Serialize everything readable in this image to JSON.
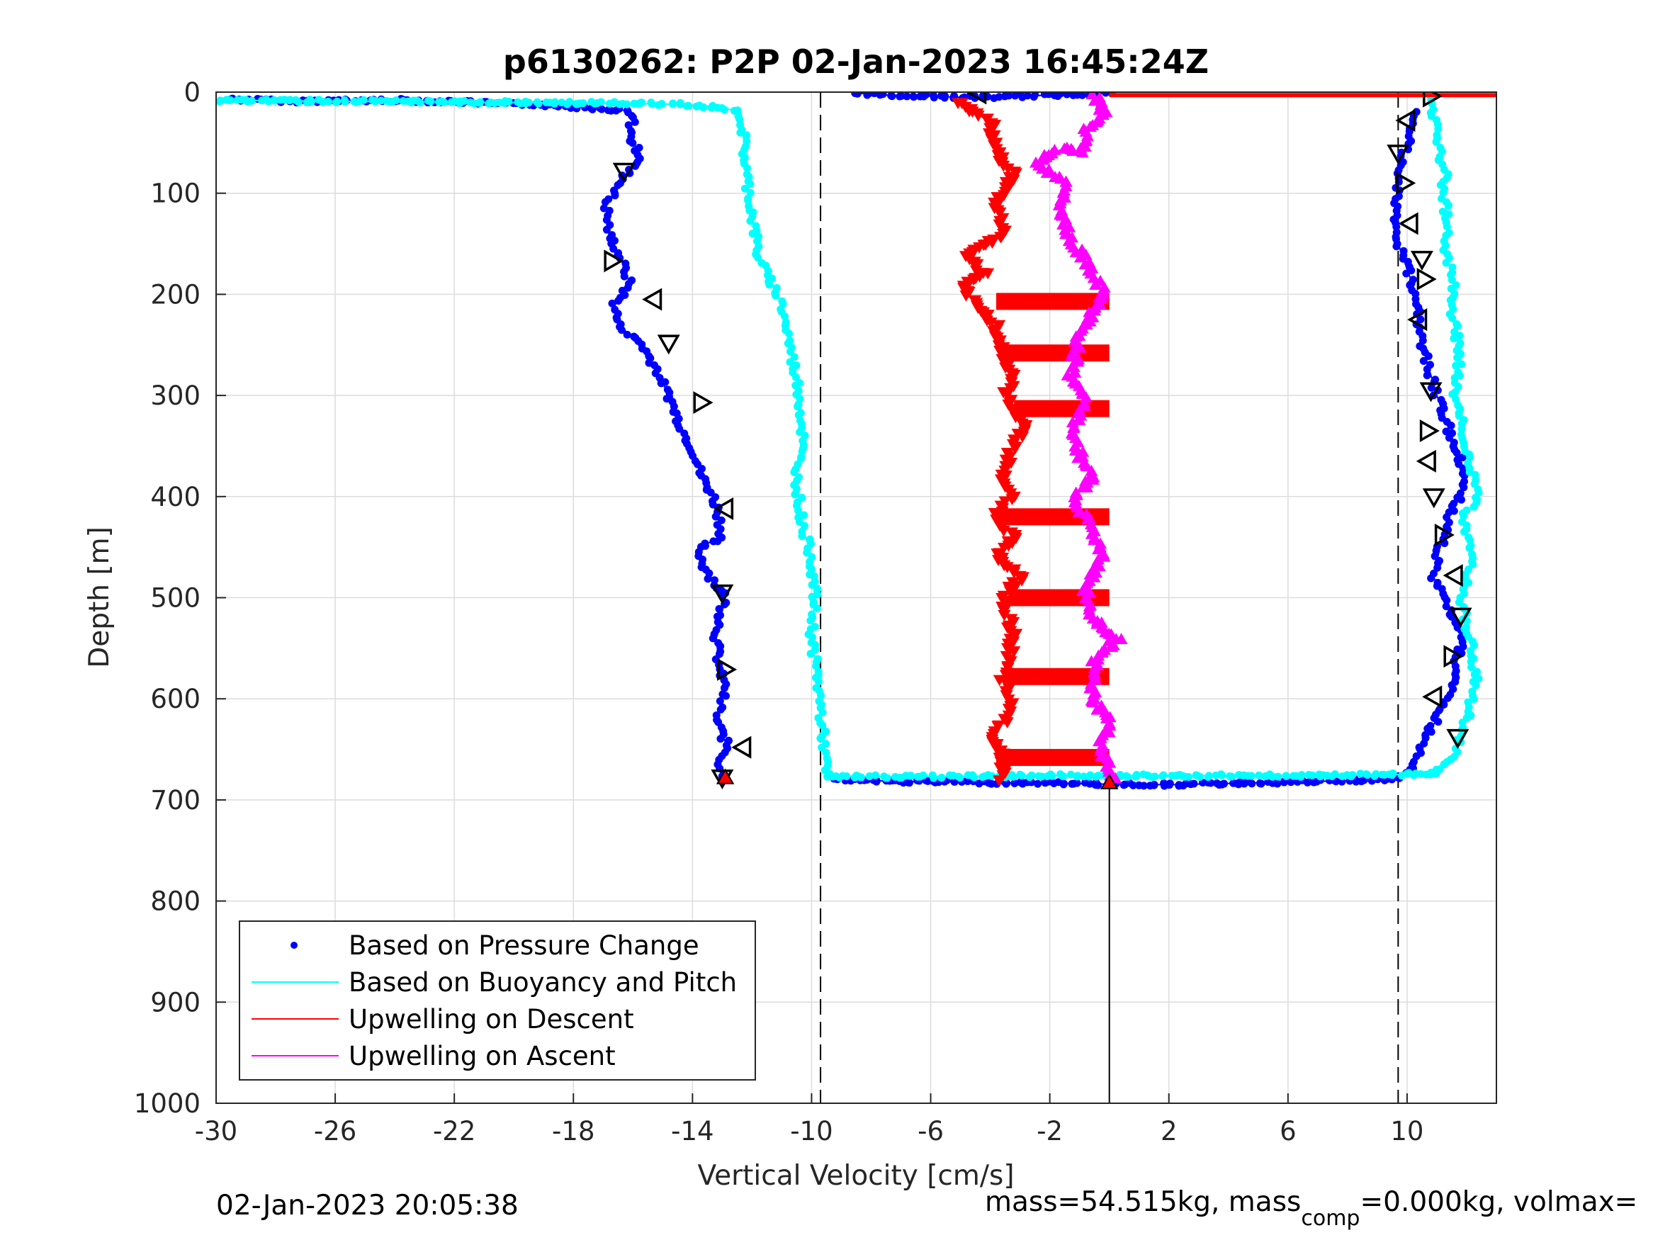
{
  "chart_data": {
    "type": "scatter",
    "title": "p6130262: P2P 02-Jan-2023 16:45:24Z",
    "xlabel": "Vertical Velocity [cm/s]",
    "ylabel": "Depth [m]",
    "xlim": [
      -30,
      13
    ],
    "ylim": [
      0,
      1000
    ],
    "y_reversed": true,
    "xticks": [
      -30,
      -26,
      -22,
      -18,
      -14,
      -10,
      -6,
      -2,
      2,
      6,
      10
    ],
    "yticks": [
      0,
      100,
      200,
      300,
      400,
      500,
      600,
      700,
      800,
      900,
      1000
    ],
    "grid": true,
    "legend_position": "bottom-left",
    "reference_lines": [
      {
        "x": -9.7,
        "style": "dashed",
        "color": "#000000"
      },
      {
        "x": 9.7,
        "style": "dashed",
        "color": "#000000"
      },
      {
        "x": 0,
        "style": "solid",
        "color": "#000000",
        "y_from": 685,
        "y_to": 1000
      }
    ],
    "series": [
      {
        "name": "Based on Pressure Change",
        "color": "#0000ff",
        "marker": "dot",
        "segments": [
          {
            "x": [
              -29.5,
              -27.5,
              -23.8,
              -21.5,
              -20.2,
              -19.3,
              -18.4,
              -17.2,
              -16.3,
              -16.0,
              -16.1,
              -15.7,
              -16.2,
              -16.6,
              -16.9,
              -16.8,
              -16.4,
              -16.1,
              -16.6,
              -16.5,
              -15.7,
              -15.2,
              -14.8,
              -14.4,
              -13.9,
              -13.7,
              -13.3,
              -13.1,
              -13.0,
              -13.8,
              -13.6,
              -12.9,
              -13.2,
              -13.1,
              -12.9,
              -13.2,
              -12.8,
              -13.1,
              -13.0,
              -12.8
            ],
            "y": [
              7,
              9,
              8,
              10,
              12,
              12,
              14,
              16,
              18,
              25,
              45,
              65,
              80,
              100,
              110,
              140,
              165,
              190,
              210,
              230,
              250,
              275,
              300,
              330,
              360,
              380,
              400,
              420,
              440,
              450,
              470,
              500,
              540,
              570,
              590,
              620,
              650,
              665,
              675,
              680
            ]
          },
          {
            "x": [
              -8.5,
              -7.5,
              -6.0,
              -5.0,
              -4.0,
              -3.0,
              -2.0,
              -1.0,
              0.0
            ],
            "y": [
              1,
              3,
              4,
              5,
              5,
              4,
              3,
              2,
              1
            ]
          },
          {
            "x": [
              -9.2,
              -8.0,
              -6.5,
              -5.0,
              -3.5,
              -2.0,
              -1.0,
              2.0,
              3.5,
              5.0,
              6.5,
              8.0,
              9.3,
              9.8,
              10.2,
              10.6,
              11.0,
              11.4,
              11.7,
              11.9,
              11.5,
              11.2,
              10.9,
              11.1,
              11.4,
              11.8,
              12.0,
              11.6,
              11.0,
              10.5,
              10.3,
              9.7,
              9.6,
              9.9,
              10.3
            ],
            "y": [
              680,
              681,
              682,
              682,
              683,
              683,
              684,
              685,
              684,
              683,
              682,
              681,
              680,
              677,
              665,
              640,
              620,
              595,
              560,
              540,
              520,
              500,
              480,
              450,
              420,
              400,
              380,
              350,
              300,
              250,
              200,
              150,
              110,
              60,
              20
            ]
          }
        ]
      },
      {
        "name": "Based on Buoyancy and Pitch",
        "color": "#00ffff",
        "marker": "dot",
        "segments": [
          {
            "x": [
              -30.0,
              -26.0,
              -21.5,
              -17.0,
              -14.5,
              -13.0,
              -12.4,
              -12.3,
              -12.2,
              -12.0,
              -11.8,
              -11.5,
              -11.0,
              -10.8,
              -10.6,
              -10.4,
              -10.3,
              -10.5,
              -10.4,
              -10.3,
              -10.0,
              -9.9,
              -10.0,
              -9.8,
              -9.7,
              -9.6,
              -9.5
            ],
            "y": [
              8,
              9,
              10,
              11,
              12,
              15,
              20,
              40,
              80,
              120,
              160,
              180,
              210,
              240,
              270,
              300,
              340,
              380,
              410,
              430,
              460,
              500,
              540,
              580,
              610,
              640,
              675
            ]
          },
          {
            "x": [
              -9.5,
              -6.0,
              -2.0,
              2.0,
              6.0,
              9.5,
              11.0,
              11.5,
              12.0,
              12.3,
              12.1,
              11.8,
              12.2,
              11.9,
              12.4,
              12.0,
              11.6,
              11.8,
              11.5,
              11.6,
              11.3,
              11.4,
              11.2,
              11.3,
              11.0,
              10.9,
              10.8
            ],
            "y": [
              677,
              677,
              676,
              676,
              676,
              675,
              674,
              660,
              620,
              580,
              540,
              500,
              460,
              420,
              400,
              350,
              300,
              260,
              220,
              190,
              160,
              130,
              100,
              80,
              50,
              20,
              2
            ]
          }
        ]
      },
      {
        "name": "Upwelling on Descent",
        "color": "#ff0000",
        "marker": "triangle-down",
        "segments": [
          {
            "x": [
              -5.0,
              -4.5,
              -4.0,
              -3.8,
              -3.2,
              -3.8,
              -3.5,
              -4.8,
              -4.2,
              -5.0,
              -4.5,
              -3.8,
              -3.6,
              -3.2,
              -3.5,
              -2.8,
              -3.2,
              -3.6,
              -3.3,
              -3.8,
              -3.2,
              -3.7,
              -3.0,
              -3.6,
              -3.2,
              -3.6,
              -3.3,
              -3.9,
              -3.5,
              -3.6
            ],
            "y": [
              10,
              20,
              30,
              60,
              80,
              110,
              140,
              160,
              180,
              190,
              210,
              230,
              260,
              280,
              300,
              330,
              350,
              380,
              400,
              420,
              440,
              460,
              480,
              500,
              540,
              580,
              610,
              640,
              660,
              680
            ]
          }
        ],
        "spikes": [
          {
            "y": 3,
            "x_from": 0,
            "x_to": 13
          },
          {
            "y": 207,
            "x_from": -3.8,
            "x_to": 0
          },
          {
            "y": 258,
            "x_from": -3.5,
            "x_to": 0
          },
          {
            "y": 313,
            "x_from": -3.2,
            "x_to": 0
          },
          {
            "y": 420,
            "x_from": -3.6,
            "x_to": 0
          },
          {
            "y": 500,
            "x_from": -3.4,
            "x_to": 0
          },
          {
            "y": 578,
            "x_from": -3.5,
            "x_to": 0
          },
          {
            "y": 658,
            "x_from": -3.8,
            "x_to": 0
          }
        ]
      },
      {
        "name": "Upwelling on Ascent",
        "color": "#ff00ff",
        "marker": "triangle-up",
        "segments": [
          {
            "x": [
              -0.5,
              -0.2,
              -0.8,
              -1.0,
              -1.5,
              -2.5,
              -1.4,
              -1.6,
              -1.2,
              -0.5,
              -0.2,
              -1.0,
              -1.3,
              -0.8,
              -1.2,
              -1.0,
              -0.5,
              -1.2,
              -0.6,
              -0.2,
              -0.8,
              -0.6,
              0.3,
              -0.5,
              -0.6,
              0.0,
              -0.3,
              0.1
            ],
            "y": [
              2,
              20,
              40,
              60,
              55,
              70,
              90,
              120,
              150,
              180,
              200,
              240,
              280,
              300,
              330,
              360,
              380,
              400,
              430,
              460,
              490,
              520,
              540,
              560,
              600,
              620,
              650,
              680
            ]
          }
        ]
      },
      {
        "name": "",
        "color": "#000000",
        "marker": "triangle-open",
        "segments": [
          {
            "x": [
              -4.4,
              -16.3,
              -16.7,
              -15.3,
              -14.8,
              -13.7,
              -12.9,
              -13.0,
              -12.9,
              -12.3,
              -13.0,
              10.8,
              10.0,
              9.7,
              9.9,
              10.1,
              10.5,
              10.6,
              10.4,
              10.8,
              10.7,
              10.7,
              10.9,
              11.2,
              11.6,
              11.8,
              11.5,
              10.9,
              11.7
            ],
            "y": [
              1,
              78,
              167,
              205,
              248,
              307,
              412,
              495,
              571,
              648,
              678,
              4,
              28,
              60,
              90,
              130,
              165,
              185,
              225,
              295,
              335,
              365,
              400,
              438,
              478,
              518,
              558,
              598,
              638
            ]
          }
        ]
      }
    ]
  },
  "footer": {
    "timestamp": "02-Jan-2023 20:05:38",
    "mass_prefix": "mass=54.515kg, mass",
    "mass_sub": "comp",
    "mass_suffix": "=0.000kg, volmax="
  }
}
